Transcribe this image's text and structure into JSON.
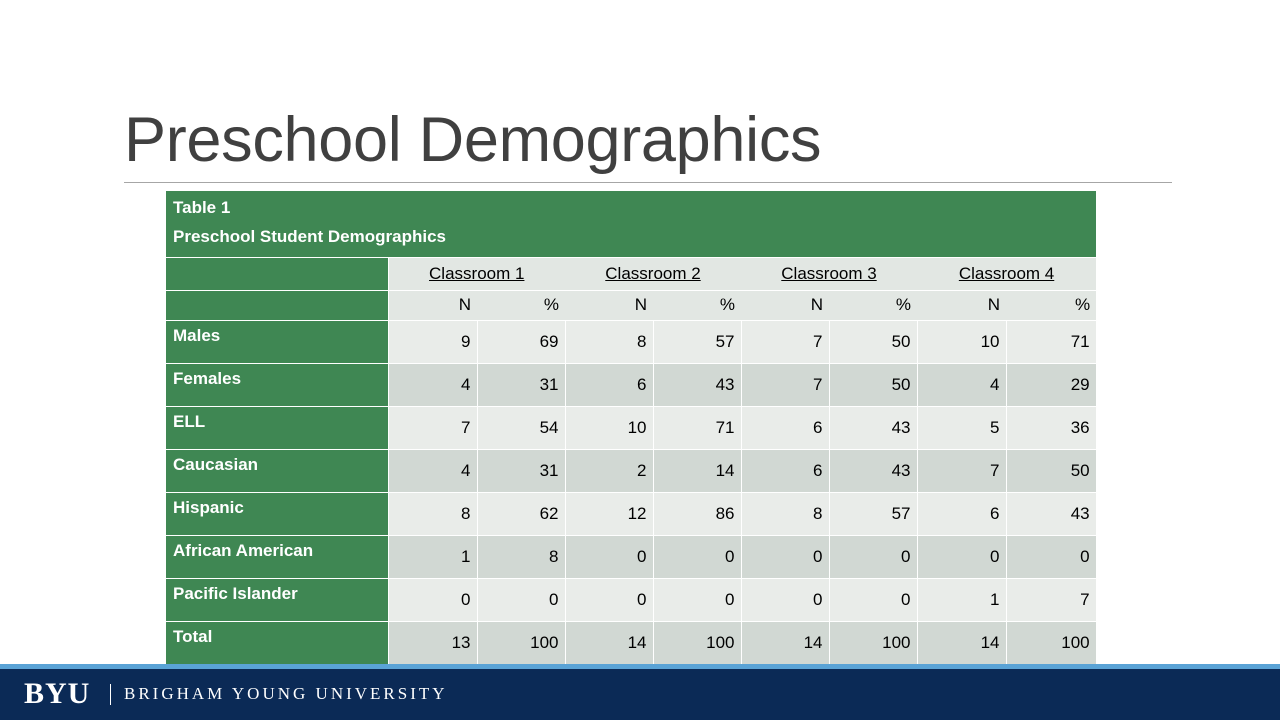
{
  "slide": {
    "title": "Preschool Demographics"
  },
  "table": {
    "caption_line1": "Table 1",
    "caption_line2": "Preschool Student Demographics",
    "classrooms": [
      "Classroom 1",
      "Classroom 2",
      "Classroom 3",
      "Classroom 4"
    ],
    "subheaders": [
      "N",
      "%",
      "N",
      "%",
      "N",
      "%",
      "N",
      "%"
    ],
    "rows": [
      {
        "label": "Males",
        "values": [
          "9",
          "69",
          "8",
          "57",
          "7",
          "50",
          "10",
          "71"
        ]
      },
      {
        "label": "Females",
        "values": [
          "4",
          "31",
          "6",
          "43",
          "7",
          "50",
          "4",
          "29"
        ]
      },
      {
        "label": "ELL",
        "values": [
          "7",
          "54",
          "10",
          "71",
          "6",
          "43",
          "5",
          "36"
        ]
      },
      {
        "label": "Caucasian",
        "values": [
          "4",
          "31",
          "2",
          "14",
          "6",
          "43",
          "7",
          "50"
        ]
      },
      {
        "label": "Hispanic",
        "values": [
          "8",
          "62",
          "12",
          "86",
          "8",
          "57",
          "6",
          "43"
        ]
      },
      {
        "label": "African American",
        "values": [
          "1",
          "8",
          "0",
          "0",
          "0",
          "0",
          "0",
          "0"
        ]
      },
      {
        "label": "Pacific Islander",
        "values": [
          "0",
          "0",
          "0",
          "0",
          "0",
          "0",
          "1",
          "7"
        ]
      },
      {
        "label": "Total",
        "values": [
          "13",
          "100",
          "14",
          "100",
          "14",
          "100",
          "14",
          "100"
        ]
      }
    ]
  },
  "footer": {
    "logo_text": "BYU",
    "university_name": "BRIGHAM YOUNG UNIVERSITY"
  },
  "colors": {
    "stub_green": "#3f8753",
    "footer_navy": "#0b2a56",
    "footer_stripe": "#5aa3d6",
    "title_gray": "#404040"
  }
}
